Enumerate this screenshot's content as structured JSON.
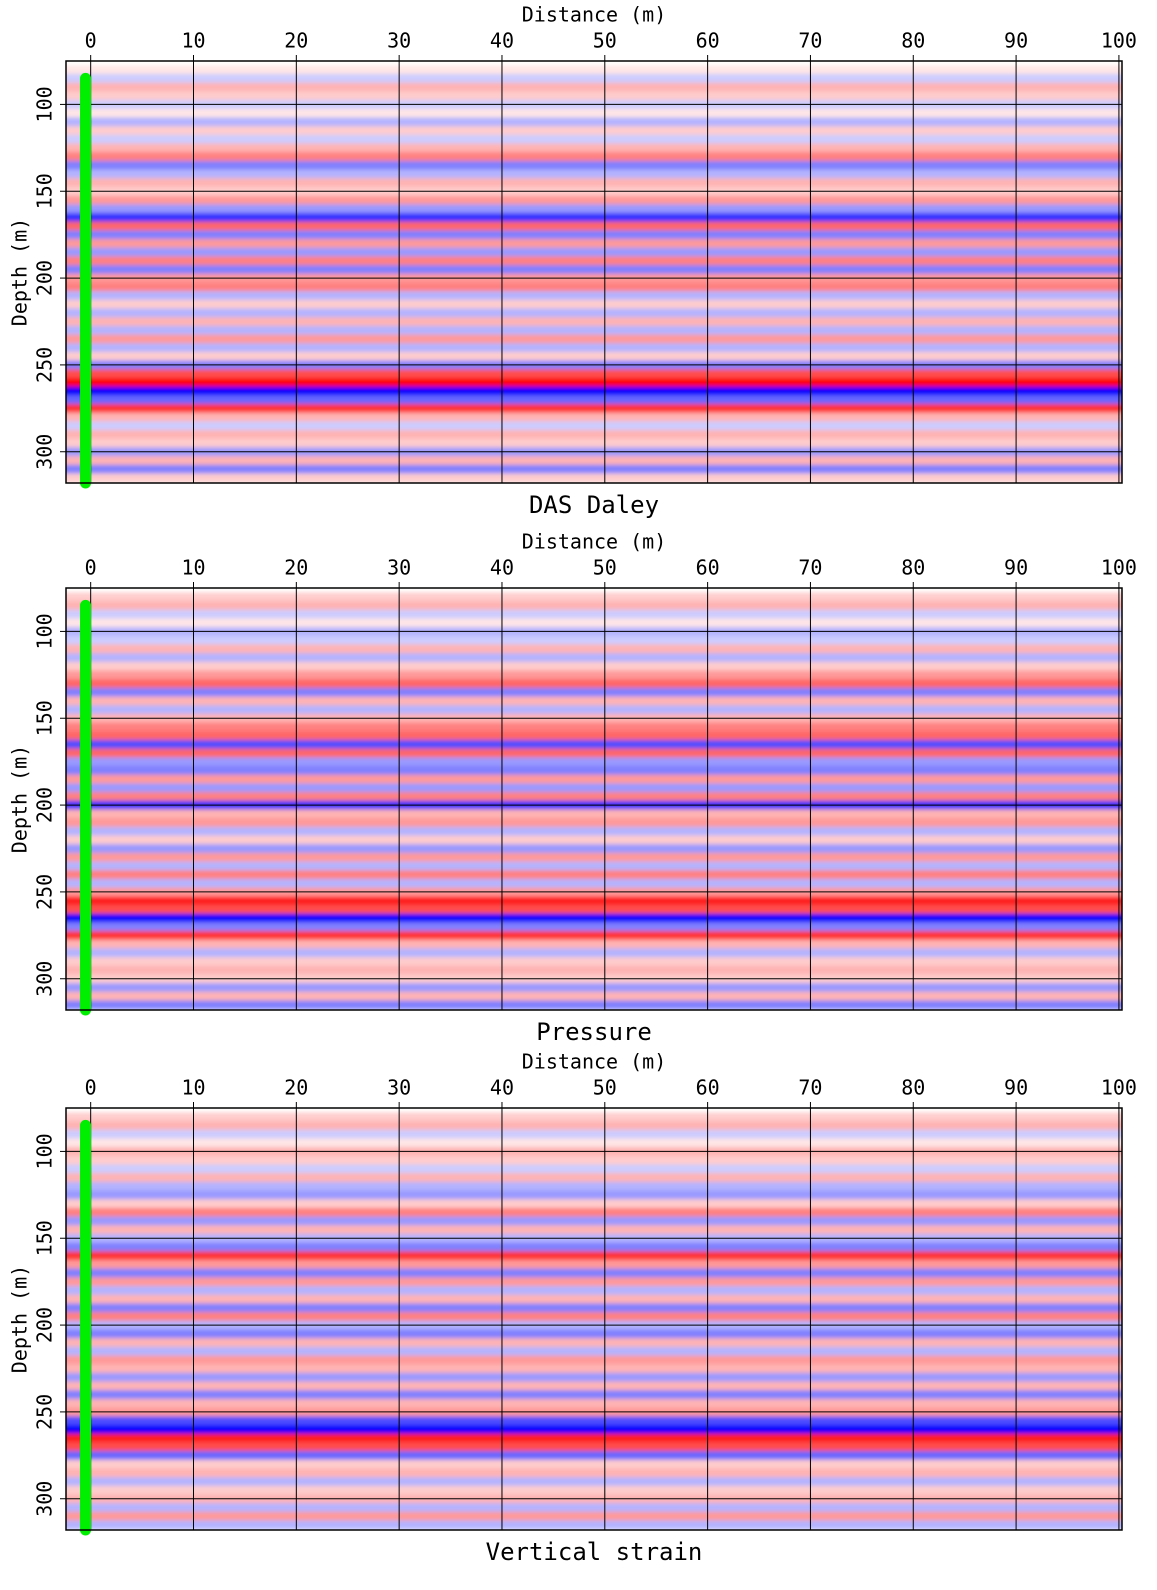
{
  "chart_data": [
    {
      "type": "heatmap",
      "title": "DAS Daley",
      "xlabel": "Distance (m)",
      "ylabel": "Depth (m)",
      "xlim": [
        -2.4,
        100.3
      ],
      "ylim": [
        75,
        318
      ],
      "xticks": [
        0,
        10,
        20,
        30,
        40,
        50,
        60,
        70,
        80,
        90,
        100
      ],
      "yticks": [
        100,
        150,
        200,
        250,
        300
      ],
      "grid": true,
      "colors": [
        "#0000ff",
        "#ffffff",
        "#ff0000"
      ],
      "depths": [
        80,
        85,
        90,
        95,
        100,
        105,
        110,
        115,
        120,
        125,
        130,
        135,
        140,
        145,
        150,
        155,
        160,
        165,
        170,
        175,
        180,
        185,
        190,
        195,
        200,
        205,
        210,
        215,
        220,
        225,
        230,
        235,
        240,
        245,
        250,
        255,
        260,
        265,
        270,
        275,
        280,
        285,
        290,
        295,
        300,
        305,
        310,
        315
      ],
      "values": [
        0.1,
        -0.2,
        0.3,
        0.2,
        -0.2,
        0.1,
        -0.3,
        0.2,
        -0.2,
        0.3,
        0.5,
        -0.5,
        -0.3,
        0.3,
        0.2,
        0.4,
        -0.4,
        -0.8,
        0.6,
        -0.5,
        0.4,
        -0.4,
        0.5,
        -0.5,
        0.4,
        0.5,
        -0.3,
        0.2,
        -0.3,
        0.3,
        -0.3,
        0.4,
        -0.3,
        0.2,
        -0.5,
        0.7,
        1,
        -1,
        -0.6,
        0.8,
        0.3,
        -0.2,
        0.3,
        0.2,
        -0.4,
        0.3,
        -0.5,
        0.2
      ],
      "well": {
        "x": -0.5,
        "depth": [
          85,
          318
        ],
        "color": "#00ee00"
      }
    },
    {
      "type": "heatmap",
      "title": "Pressure",
      "xlabel": "Distance (m)",
      "ylabel": "Depth (m)",
      "xlim": [
        -2.4,
        100.3
      ],
      "ylim": [
        75,
        318
      ],
      "xticks": [
        0,
        10,
        20,
        30,
        40,
        50,
        60,
        70,
        80,
        90,
        100
      ],
      "yticks": [
        100,
        150,
        200,
        250,
        300
      ],
      "grid": true,
      "colors": [
        "#0000ff",
        "#ffffff",
        "#ff0000"
      ],
      "depths": [
        80,
        85,
        90,
        95,
        100,
        105,
        110,
        115,
        120,
        125,
        130,
        135,
        140,
        145,
        150,
        155,
        160,
        165,
        170,
        175,
        180,
        185,
        190,
        195,
        200,
        205,
        210,
        215,
        220,
        225,
        230,
        235,
        240,
        245,
        250,
        255,
        260,
        265,
        270,
        275,
        280,
        285,
        290,
        295,
        300,
        305,
        310,
        315
      ],
      "values": [
        0.2,
        0.3,
        -0.2,
        0.1,
        -0.3,
        -0.2,
        0.3,
        -0.3,
        0.2,
        0.4,
        0.6,
        -0.5,
        0.3,
        -0.3,
        0.3,
        0.5,
        0.6,
        -0.7,
        0.6,
        -0.4,
        -0.5,
        0.4,
        -0.4,
        0.5,
        -0.8,
        0.3,
        0.4,
        -0.3,
        0.2,
        -0.4,
        0.4,
        -0.3,
        0.5,
        -0.3,
        0.4,
        0.9,
        0.7,
        -1,
        -0.5,
        0.8,
        0.3,
        -0.3,
        0.2,
        0.3,
        0.2,
        -0.4,
        0.3,
        -0.5
      ],
      "well": {
        "x": -0.5,
        "depth": [
          85,
          318
        ],
        "color": "#00ee00"
      }
    },
    {
      "type": "heatmap",
      "title": "Vertical strain",
      "xlabel": "Distance (m)",
      "ylabel": "Depth (m)",
      "xlim": [
        -2.4,
        100.3
      ],
      "ylim": [
        75,
        318
      ],
      "xticks": [
        0,
        10,
        20,
        30,
        40,
        50,
        60,
        70,
        80,
        90,
        100
      ],
      "yticks": [
        100,
        150,
        200,
        250,
        300
      ],
      "grid": true,
      "colors": [
        "#0000ff",
        "#ffffff",
        "#ff0000"
      ],
      "depths": [
        80,
        85,
        90,
        95,
        100,
        105,
        110,
        115,
        120,
        125,
        130,
        135,
        140,
        145,
        150,
        155,
        160,
        165,
        170,
        175,
        180,
        185,
        190,
        195,
        200,
        205,
        210,
        215,
        220,
        225,
        230,
        235,
        240,
        245,
        250,
        255,
        260,
        265,
        270,
        275,
        280,
        285,
        290,
        295,
        300,
        305,
        310,
        315
      ],
      "values": [
        0.2,
        0.3,
        -0.2,
        0.1,
        0.3,
        0.2,
        -0.2,
        0.3,
        -0.3,
        -0.4,
        0.2,
        0.5,
        -0.4,
        0.3,
        -0.3,
        -0.5,
        0.8,
        0.4,
        -0.5,
        0.4,
        -0.3,
        0.3,
        -0.5,
        0.5,
        -0.3,
        -0.5,
        0.3,
        -0.3,
        0.4,
        0.3,
        -0.4,
        0.3,
        -0.5,
        0.3,
        0.4,
        -0.7,
        -1,
        0.9,
        0.7,
        -0.6,
        0.2,
        0.3,
        -0.3,
        0.2,
        0.3,
        -0.3,
        0.4,
        -0.3
      ],
      "well": {
        "x": -0.5,
        "depth": [
          85,
          318
        ],
        "color": "#00ee00"
      }
    }
  ]
}
